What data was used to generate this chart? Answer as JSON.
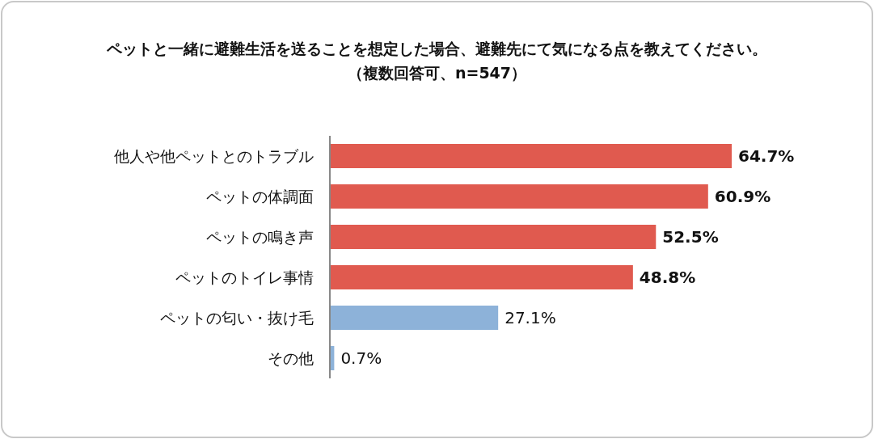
{
  "chart_data": {
    "type": "bar",
    "orientation": "horizontal",
    "title": "ペットと一緒に避難生活を送ることを想定した場合、避難先にて気になる点を教えてください。",
    "subtitle": "（複数回答可、n=547）",
    "categories": [
      "他人や他ペットとのトラブル",
      "ペットの体調面",
      "ペットの鳴き声",
      "ペットのトイレ事情",
      "ペットの匂い・抜け毛",
      "その他"
    ],
    "values": [
      64.7,
      60.9,
      52.5,
      48.8,
      27.1,
      0.7
    ],
    "value_labels": [
      "64.7%",
      "60.9%",
      "52.5%",
      "48.8%",
      "27.1%",
      "0.7%"
    ],
    "colors": [
      "#e05a4f",
      "#e05a4f",
      "#e05a4f",
      "#e05a4f",
      "#8db2d9",
      "#8db2d9"
    ],
    "grid": false,
    "legend": false
  }
}
